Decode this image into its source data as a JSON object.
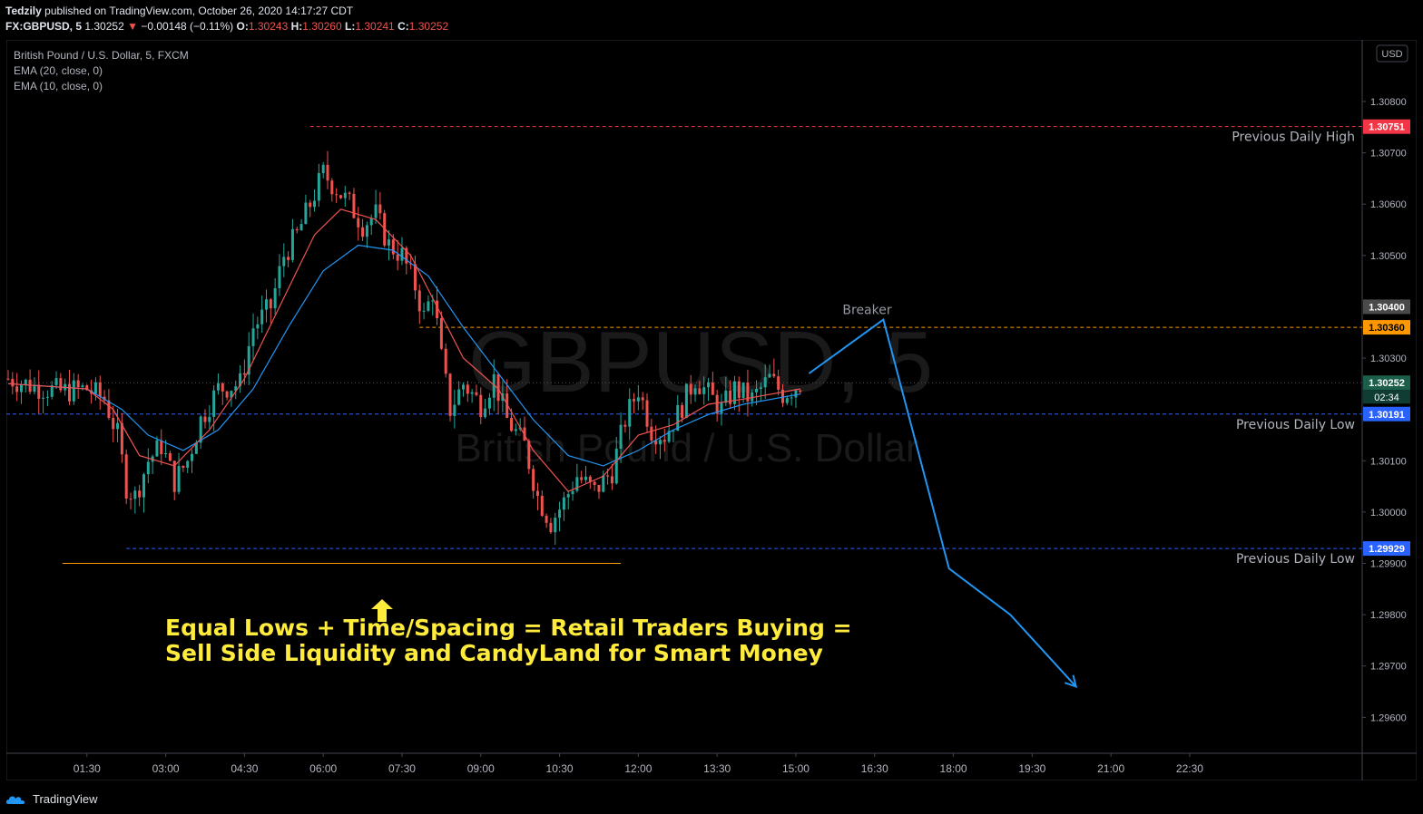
{
  "header": {
    "author": "Tedzily",
    "published_text": "published on TradingView.com, October 26, 2020 14:17:27 CDT",
    "symbol": "FX:GBPUSD, 5",
    "last": "1.30252",
    "change": "−0.00148 (−0.11%)",
    "o_label": "O:",
    "o": "1.30243",
    "h_label": "H:",
    "h": "1.30260",
    "l_label": "L:",
    "l": "1.30241",
    "c_label": "C:",
    "c": "1.30252"
  },
  "legend": {
    "title": "British Pound / U.S. Dollar, 5, FXCM",
    "ema1": "EMA (20, close, 0)",
    "ema2": "EMA (10, close, 0)"
  },
  "currency_badge": "USD",
  "watermark": {
    "symbol": "GBPUSD, 5",
    "name": "British Pound / U.S. Dollar"
  },
  "annotation": {
    "line1": "Equal Lows + Time/Spacing = Retail Traders Buying =",
    "line2": "Sell Side Liquidity and CandyLand for Smart Money",
    "breaker": "Breaker"
  },
  "levels": [
    {
      "name": "previous-daily-high",
      "price": 1.30751,
      "tag": "1.30751",
      "label": "Previous Daily High",
      "color": "#f23645"
    },
    {
      "name": "breaker-level",
      "price": 1.3036,
      "tag": "1.30360",
      "label": "",
      "color": "#ff9800"
    },
    {
      "name": "previous-daily-low-1",
      "price": 1.30191,
      "tag": "1.30191",
      "label": "Previous Daily Low",
      "color": "#2962ff"
    },
    {
      "name": "previous-daily-low-2",
      "price": 1.29929,
      "tag": "1.29929",
      "label": "Previous Daily Low",
      "color": "#2962ff"
    }
  ],
  "price_tags_extra": [
    {
      "name": "crosshair-price",
      "price": 1.304,
      "tag": "1.30400",
      "color": "#4a4a4a"
    },
    {
      "name": "last-price",
      "price": 1.30252,
      "tag": "1.30252",
      "color": "#1b5e4a"
    }
  ],
  "countdown": "02:34",
  "footer": {
    "brand": "TradingView"
  },
  "chart_data": {
    "type": "candlestick",
    "x_ticks": [
      "01:30",
      "03:00",
      "04:30",
      "06:00",
      "07:30",
      "09:00",
      "10:30",
      "12:00",
      "13:30",
      "15:00",
      "16:30",
      "18:00",
      "19:30",
      "21:00",
      "22:30"
    ],
    "y_ticks": [
      "1.30800",
      "1.30700",
      "1.30600",
      "1.30500",
      "1.30300",
      "1.30100",
      "1.30000",
      "1.29900",
      "1.29800",
      "1.29700",
      "1.29600"
    ],
    "ylim": [
      1.2953,
      1.3092
    ],
    "time_range_minutes": [
      0,
      1545
    ],
    "colors": {
      "up": "#26a69a",
      "down": "#ef5350",
      "ema20": "#2196f3",
      "ema10": "#ef5350"
    },
    "close_path": [
      {
        "t": 0,
        "p": 1.3026
      },
      {
        "t": 30,
        "p": 1.30245
      },
      {
        "t": 60,
        "p": 1.30235
      },
      {
        "t": 90,
        "p": 1.3024
      },
      {
        "t": 110,
        "p": 1.3022
      },
      {
        "t": 125,
        "p": 1.3015
      },
      {
        "t": 135,
        "p": 1.3005
      },
      {
        "t": 145,
        "p": 1.3003
      },
      {
        "t": 160,
        "p": 1.301
      },
      {
        "t": 175,
        "p": 1.3013
      },
      {
        "t": 190,
        "p": 1.3006
      },
      {
        "t": 205,
        "p": 1.301
      },
      {
        "t": 220,
        "p": 1.3018
      },
      {
        "t": 240,
        "p": 1.3024
      },
      {
        "t": 265,
        "p": 1.3025
      },
      {
        "t": 280,
        "p": 1.3036
      },
      {
        "t": 300,
        "p": 1.304
      },
      {
        "t": 315,
        "p": 1.305
      },
      {
        "t": 330,
        "p": 1.3054
      },
      {
        "t": 345,
        "p": 1.306
      },
      {
        "t": 360,
        "p": 1.3066
      },
      {
        "t": 375,
        "p": 1.3063
      },
      {
        "t": 390,
        "p": 1.306
      },
      {
        "t": 405,
        "p": 1.3056
      },
      {
        "t": 420,
        "p": 1.3058
      },
      {
        "t": 435,
        "p": 1.3052
      },
      {
        "t": 450,
        "p": 1.305
      },
      {
        "t": 465,
        "p": 1.3044
      },
      {
        "t": 475,
        "p": 1.3038
      },
      {
        "t": 485,
        "p": 1.3043
      },
      {
        "t": 495,
        "p": 1.303
      },
      {
        "t": 505,
        "p": 1.302
      },
      {
        "t": 520,
        "p": 1.3025
      },
      {
        "t": 540,
        "p": 1.3021
      },
      {
        "t": 555,
        "p": 1.3026
      },
      {
        "t": 570,
        "p": 1.3018
      },
      {
        "t": 590,
        "p": 1.3013
      },
      {
        "t": 605,
        "p": 1.3003
      },
      {
        "t": 620,
        "p": 1.2998
      },
      {
        "t": 635,
        "p": 1.3002
      },
      {
        "t": 650,
        "p": 1.3007
      },
      {
        "t": 670,
        "p": 1.3004
      },
      {
        "t": 690,
        "p": 1.3008
      },
      {
        "t": 705,
        "p": 1.3018
      },
      {
        "t": 720,
        "p": 1.3024
      },
      {
        "t": 735,
        "p": 1.3016
      },
      {
        "t": 750,
        "p": 1.3015
      },
      {
        "t": 765,
        "p": 1.3019
      },
      {
        "t": 785,
        "p": 1.3026
      },
      {
        "t": 800,
        "p": 1.3023
      },
      {
        "t": 815,
        "p": 1.302
      },
      {
        "t": 830,
        "p": 1.3024
      },
      {
        "t": 850,
        "p": 1.3022
      },
      {
        "t": 870,
        "p": 1.3026
      },
      {
        "t": 885,
        "p": 1.3023
      },
      {
        "t": 905,
        "p": 1.3025
      }
    ],
    "ema20_path": [
      {
        "t": 0,
        "p": 1.3025
      },
      {
        "t": 90,
        "p": 1.3024
      },
      {
        "t": 130,
        "p": 1.302
      },
      {
        "t": 160,
        "p": 1.3015
      },
      {
        "t": 200,
        "p": 1.3012
      },
      {
        "t": 240,
        "p": 1.3016
      },
      {
        "t": 280,
        "p": 1.3024
      },
      {
        "t": 320,
        "p": 1.3036
      },
      {
        "t": 360,
        "p": 1.3047
      },
      {
        "t": 400,
        "p": 1.3052
      },
      {
        "t": 440,
        "p": 1.3051
      },
      {
        "t": 480,
        "p": 1.3046
      },
      {
        "t": 520,
        "p": 1.3036
      },
      {
        "t": 560,
        "p": 1.3027
      },
      {
        "t": 600,
        "p": 1.3018
      },
      {
        "t": 640,
        "p": 1.3011
      },
      {
        "t": 680,
        "p": 1.3009
      },
      {
        "t": 720,
        "p": 1.3012
      },
      {
        "t": 760,
        "p": 1.3016
      },
      {
        "t": 800,
        "p": 1.3019
      },
      {
        "t": 840,
        "p": 1.3021
      },
      {
        "t": 905,
        "p": 1.3023
      }
    ],
    "ema10_path": [
      {
        "t": 0,
        "p": 1.3025
      },
      {
        "t": 90,
        "p": 1.3024
      },
      {
        "t": 120,
        "p": 1.302
      },
      {
        "t": 150,
        "p": 1.3011
      },
      {
        "t": 190,
        "p": 1.3009
      },
      {
        "t": 230,
        "p": 1.3016
      },
      {
        "t": 270,
        "p": 1.3026
      },
      {
        "t": 310,
        "p": 1.304
      },
      {
        "t": 350,
        "p": 1.3054
      },
      {
        "t": 380,
        "p": 1.3059
      },
      {
        "t": 420,
        "p": 1.3057
      },
      {
        "t": 460,
        "p": 1.305
      },
      {
        "t": 490,
        "p": 1.304
      },
      {
        "t": 520,
        "p": 1.303
      },
      {
        "t": 560,
        "p": 1.3024
      },
      {
        "t": 600,
        "p": 1.3012
      },
      {
        "t": 640,
        "p": 1.3004
      },
      {
        "t": 680,
        "p": 1.3007
      },
      {
        "t": 720,
        "p": 1.3015
      },
      {
        "t": 760,
        "p": 1.3017
      },
      {
        "t": 800,
        "p": 1.3021
      },
      {
        "t": 840,
        "p": 1.3022
      },
      {
        "t": 905,
        "p": 1.3024
      }
    ],
    "projection_path": [
      {
        "t": 915,
        "p": 1.3027
      },
      {
        "t": 1000,
        "p": 1.30375
      },
      {
        "t": 1075,
        "p": 1.2989
      },
      {
        "t": 1145,
        "p": 1.298
      },
      {
        "t": 1220,
        "p": 1.2966
      }
    ],
    "equal_lows_line": {
      "t_start": 62,
      "t_end": 700,
      "p": 1.299,
      "color": "#ff9800"
    }
  }
}
